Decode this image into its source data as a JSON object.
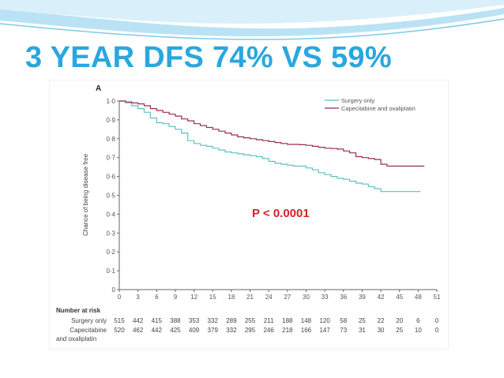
{
  "slide": {
    "title": "3 YEAR DFS 74% VS 59%",
    "title_color": "#2aa7de",
    "background_color": "#ffffff",
    "swoosh_colors": [
      "#b9e3f4",
      "#d9f0fa",
      "#7fcbe9"
    ]
  },
  "chart_data": {
    "type": "line",
    "panel_label": "A",
    "ylabel": "Chance of being disease free",
    "xlabel": "",
    "xlim": [
      0,
      51
    ],
    "ylim": [
      0,
      1.0
    ],
    "x_ticks": [
      "0",
      "3",
      "6",
      "9",
      "12",
      "15",
      "18",
      "21",
      "24",
      "27",
      "30",
      "33",
      "36",
      "39",
      "42",
      "45",
      "48",
      "51"
    ],
    "y_ticks": [
      "0",
      "0·1",
      "0·2",
      "0·3",
      "0·4",
      "0·5",
      "0·6",
      "0·7",
      "0·8",
      "0·9",
      "1·0"
    ],
    "grid": false,
    "legend_position": "top-right",
    "annotation": "P < 0.0001",
    "annotation_color": "#d2232a",
    "series": [
      {
        "name": "Surgery only",
        "color": "#5fc0c4",
        "points": [
          [
            0,
            1.0
          ],
          [
            1,
            0.99
          ],
          [
            2,
            0.975
          ],
          [
            3,
            0.96
          ],
          [
            4,
            0.94
          ],
          [
            5,
            0.91
          ],
          [
            6,
            0.885
          ],
          [
            7,
            0.88
          ],
          [
            8,
            0.865
          ],
          [
            9,
            0.85
          ],
          [
            10,
            0.83
          ],
          [
            11,
            0.79
          ],
          [
            12,
            0.775
          ],
          [
            13,
            0.765
          ],
          [
            14,
            0.76
          ],
          [
            15,
            0.75
          ],
          [
            16,
            0.74
          ],
          [
            17,
            0.73
          ],
          [
            18,
            0.725
          ],
          [
            19,
            0.72
          ],
          [
            20,
            0.715
          ],
          [
            21,
            0.71
          ],
          [
            22,
            0.705
          ],
          [
            23,
            0.695
          ],
          [
            24,
            0.68
          ],
          [
            25,
            0.67
          ],
          [
            26,
            0.665
          ],
          [
            27,
            0.66
          ],
          [
            28,
            0.655
          ],
          [
            29,
            0.655
          ],
          [
            30,
            0.645
          ],
          [
            31,
            0.635
          ],
          [
            32,
            0.62
          ],
          [
            33,
            0.61
          ],
          [
            34,
            0.6
          ],
          [
            35,
            0.59
          ],
          [
            36,
            0.585
          ],
          [
            37,
            0.575
          ],
          [
            38,
            0.565
          ],
          [
            39,
            0.56
          ],
          [
            40,
            0.545
          ],
          [
            41,
            0.535
          ],
          [
            42,
            0.52
          ],
          [
            44,
            0.52
          ],
          [
            46,
            0.52
          ],
          [
            47,
            0.52
          ],
          [
            48.4,
            0.52
          ]
        ]
      },
      {
        "name": "Capecitabine and oxaliplatin",
        "color": "#9c2b55",
        "points": [
          [
            0,
            1.0
          ],
          [
            1,
            0.995
          ],
          [
            2,
            0.99
          ],
          [
            3,
            0.985
          ],
          [
            4,
            0.975
          ],
          [
            5,
            0.96
          ],
          [
            6,
            0.95
          ],
          [
            7,
            0.94
          ],
          [
            8,
            0.93
          ],
          [
            9,
            0.92
          ],
          [
            10,
            0.905
          ],
          [
            11,
            0.895
          ],
          [
            12,
            0.88
          ],
          [
            13,
            0.87
          ],
          [
            14,
            0.86
          ],
          [
            15,
            0.85
          ],
          [
            16,
            0.84
          ],
          [
            17,
            0.83
          ],
          [
            18,
            0.82
          ],
          [
            19,
            0.81
          ],
          [
            20,
            0.805
          ],
          [
            21,
            0.8
          ],
          [
            22,
            0.795
          ],
          [
            23,
            0.79
          ],
          [
            24,
            0.785
          ],
          [
            25,
            0.78
          ],
          [
            26,
            0.775
          ],
          [
            27,
            0.77
          ],
          [
            28,
            0.77
          ],
          [
            29,
            0.768
          ],
          [
            30,
            0.765
          ],
          [
            31,
            0.76
          ],
          [
            32,
            0.755
          ],
          [
            33,
            0.75
          ],
          [
            34,
            0.748
          ],
          [
            35,
            0.745
          ],
          [
            36,
            0.735
          ],
          [
            37,
            0.725
          ],
          [
            38,
            0.705
          ],
          [
            39,
            0.7
          ],
          [
            40,
            0.695
          ],
          [
            41,
            0.69
          ],
          [
            42,
            0.665
          ],
          [
            43,
            0.655
          ],
          [
            44,
            0.655
          ],
          [
            45,
            0.655
          ],
          [
            46,
            0.655
          ],
          [
            48,
            0.655
          ],
          [
            49,
            0.655
          ]
        ]
      }
    ],
    "risk_table": {
      "header": "Number at risk",
      "rows": [
        {
          "label": "Surgery only",
          "values": [
            "515",
            "442",
            "415",
            "388",
            "353",
            "332",
            "289",
            "255",
            "211",
            "188",
            "148",
            "120",
            "58",
            "25",
            "22",
            "20",
            "6",
            "0"
          ]
        },
        {
          "label": "Capecitabine",
          "label2": "and oxaliplatin",
          "values": [
            "520",
            "462",
            "442",
            "425",
            "409",
            "379",
            "332",
            "295",
            "246",
            "218",
            "166",
            "147",
            "73",
            "31",
            "30",
            "25",
            "10",
            "0"
          ]
        }
      ]
    }
  }
}
